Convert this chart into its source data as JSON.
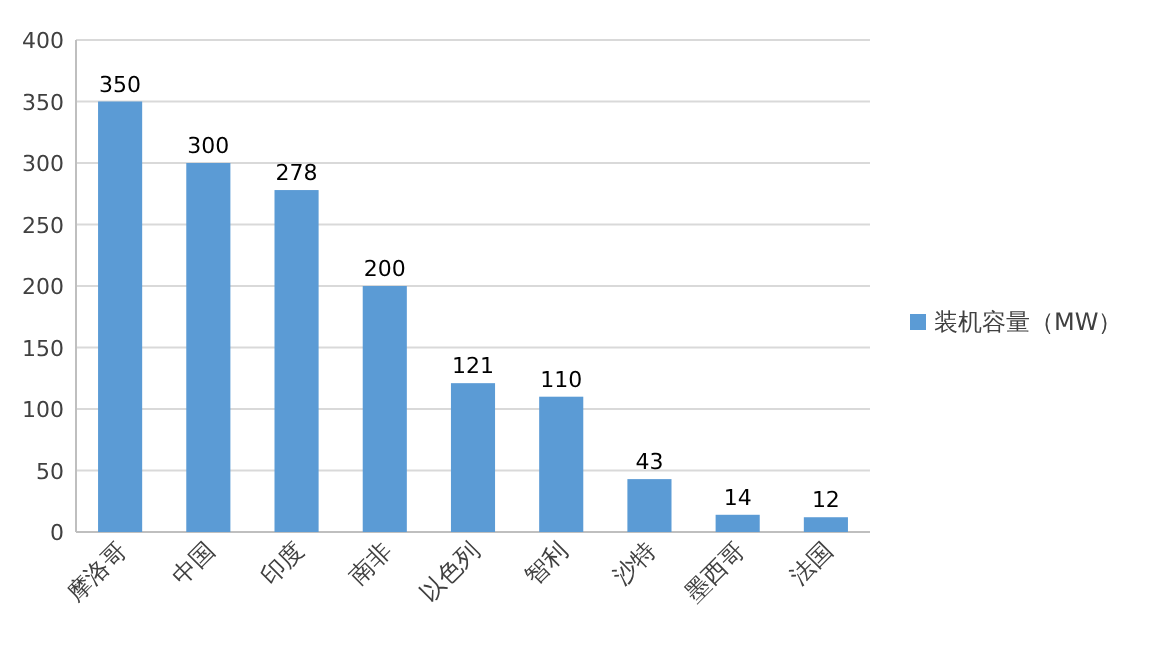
{
  "chart_data": {
    "type": "bar",
    "categories": [
      "摩洛哥",
      "中国",
      "印度",
      "南非",
      "以色列",
      "智利",
      "沙特",
      "墨西哥",
      "法国"
    ],
    "series": [
      {
        "name": "装机容量（MW）",
        "color": "#5b9bd5",
        "values": [
          350,
          300,
          278,
          200,
          121,
          110,
          43,
          14,
          12
        ]
      }
    ],
    "ylim": [
      0,
      400
    ],
    "yticks": [
      0,
      50,
      100,
      150,
      200,
      250,
      300,
      350,
      400
    ],
    "grid": "y",
    "legend": "right",
    "data_labels": true
  }
}
